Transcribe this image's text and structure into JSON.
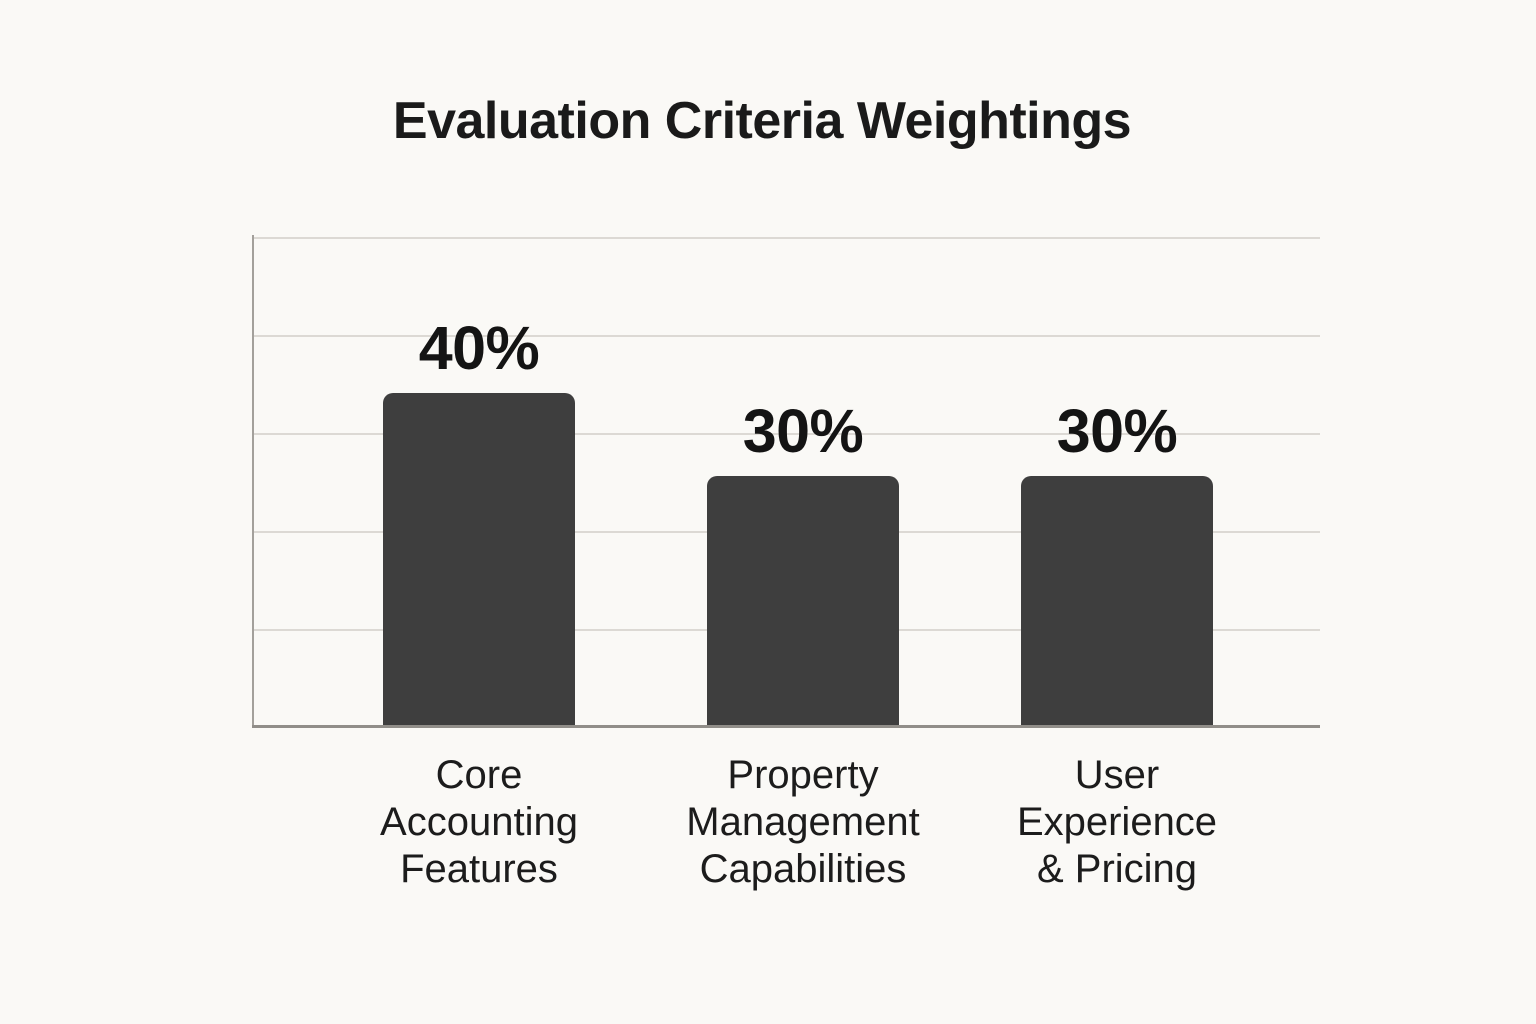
{
  "page": {
    "title": "Evaluation Criteria Weightings"
  },
  "chart_data": {
    "type": "bar",
    "title": "Evaluation Criteria Weightings",
    "categories": [
      "Core Accounting Features",
      "Property Management Capabilities",
      "User Experience & Pricing"
    ],
    "category_labels_multiline": [
      "Core\nAccounting\nFeatures",
      "Property\nManagement\nCapabilities",
      "User\nExperience\n& Pricing"
    ],
    "values": [
      40,
      30,
      30
    ],
    "value_labels": [
      "40%",
      "30%",
      "30%"
    ],
    "unit": "%",
    "xlabel": "",
    "ylabel": "",
    "ylim": [
      0,
      50
    ],
    "grid": true,
    "gridline_interval": 10,
    "legend": false,
    "colors": {
      "bar": "#3e3e3e",
      "background": "#faf9f6",
      "gridline": "#dcd9d4",
      "axis": "#918e89",
      "text": "#1a1a1a"
    }
  }
}
